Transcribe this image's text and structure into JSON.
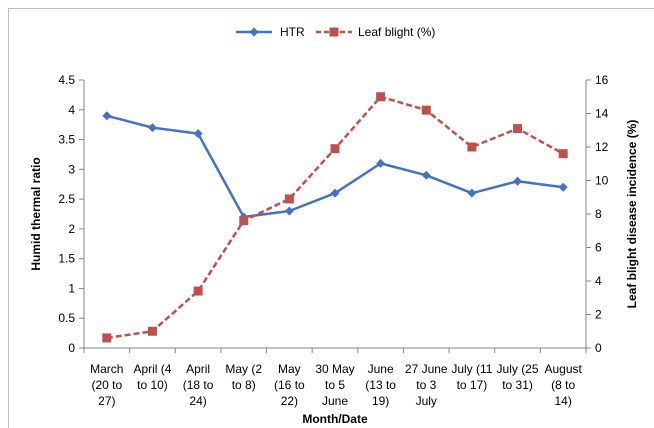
{
  "chart_data": {
    "type": "line",
    "title": "",
    "categories": [
      [
        "March",
        "(20 to",
        "27)"
      ],
      [
        "April (4",
        "to 10)"
      ],
      [
        "April",
        "(18 to",
        "24)"
      ],
      [
        "May (2",
        "to 8)"
      ],
      [
        "May",
        "(16 to",
        "22)"
      ],
      [
        "30 May",
        "to 5",
        "June"
      ],
      [
        "June",
        "(13 to",
        "19)"
      ],
      [
        "27 June",
        "to 3",
        "July"
      ],
      [
        "July (11",
        "to 17)"
      ],
      [
        "July (25",
        "to 31)"
      ],
      [
        "August",
        "(8 to",
        "14)"
      ]
    ],
    "xlabel": "Month/Date",
    "ylabel": "Humid thermal ratio",
    "y2label": "Leaf blight disease  incidence (%)",
    "ylim": [
      0,
      4.5
    ],
    "yticks": [
      "0",
      "0.5",
      "1",
      "1.5",
      "2",
      "2.5",
      "3",
      "3.5",
      "4",
      "4.5"
    ],
    "y2lim": [
      0,
      16
    ],
    "y2ticks": [
      "0",
      "2",
      "4",
      "6",
      "8",
      "10",
      "12",
      "14",
      "16"
    ],
    "grid": false,
    "legend_position": "top",
    "series": [
      {
        "name": "HTR",
        "axis": "left",
        "color": "#4472C4",
        "marker": "diamond",
        "line_style": "solid",
        "values": [
          3.9,
          3.7,
          3.6,
          2.2,
          2.3,
          2.6,
          3.1,
          2.9,
          2.6,
          2.8,
          2.7
        ]
      },
      {
        "name": "Leaf blight (%)",
        "axis": "right",
        "color": "#C0504D",
        "marker": "square",
        "line_style": "dashed",
        "values": [
          0.6,
          1.0,
          3.4,
          7.6,
          8.9,
          11.9,
          15.0,
          14.2,
          12.0,
          13.1,
          11.6
        ]
      }
    ]
  }
}
